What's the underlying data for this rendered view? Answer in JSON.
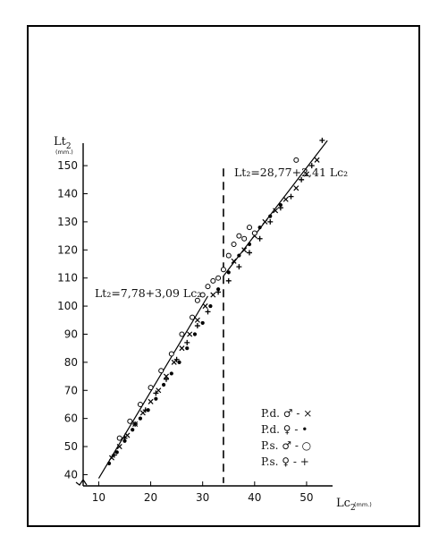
{
  "chart_data": {
    "type": "scatter",
    "title": "",
    "xlabel": "Lc",
    "xlabel_sub": "2",
    "xunit": "(mm.)",
    "ylabel": "Lt",
    "ylabel_sub": "2",
    "yunit": "(mm.)",
    "xlim": [
      7,
      55
    ],
    "ylim": [
      36,
      158
    ],
    "xticks": [
      10,
      20,
      30,
      40,
      50
    ],
    "yticks": [
      40,
      50,
      60,
      70,
      80,
      90,
      100,
      110,
      120,
      130,
      140,
      150
    ],
    "grid": false,
    "divider_x": 34,
    "regressions": [
      {
        "label": "Lt₂=7,78+3,09 Lc₂",
        "intercept": 7.78,
        "slope": 3.09,
        "x_range": [
          10,
          31
        ]
      },
      {
        "label": "Lt₂=28,77+2,41 Lc₂",
        "intercept": 28.77,
        "slope": 2.41,
        "x_range": [
          34,
          54
        ]
      }
    ],
    "legend_position": "bottom-right",
    "series": [
      {
        "name": "P.d. ♂ - ×",
        "marker": "x",
        "x": [
          12.5,
          14,
          15.5,
          17,
          18.5,
          20,
          21.5,
          23,
          24.5,
          26,
          27.5,
          29,
          30.5,
          32,
          36,
          38,
          40,
          42,
          44,
          46,
          48,
          50,
          52
        ],
        "y": [
          46,
          50,
          54,
          58,
          62,
          66,
          70,
          75,
          80,
          85,
          90,
          95,
          100,
          104,
          116,
          120,
          125,
          130,
          134,
          138,
          142,
          147,
          152
        ]
      },
      {
        "name": "P.d. ♀ - •",
        "marker": "dot",
        "x": [
          12,
          13.5,
          15,
          16.5,
          18,
          19.5,
          21,
          22.5,
          24,
          25.5,
          27,
          28.5,
          30,
          31.5,
          33,
          35,
          37,
          39,
          41,
          43,
          45
        ],
        "y": [
          44,
          48,
          52,
          56,
          60,
          63,
          67,
          72,
          76,
          80,
          85,
          90,
          94,
          100,
          106,
          112,
          118,
          122,
          128,
          132,
          136
        ]
      },
      {
        "name": "P.s. ♂ - ○",
        "marker": "circle",
        "x": [
          14,
          16,
          18,
          20,
          22,
          24,
          26,
          28,
          29,
          30,
          31,
          32,
          33,
          34,
          35,
          36,
          37,
          38,
          39,
          40,
          48
        ],
        "y": [
          53,
          59,
          65,
          71,
          77,
          83,
          90,
          96,
          102,
          104,
          107,
          109,
          110,
          113,
          118,
          122,
          125,
          124,
          128,
          126,
          152
        ]
      },
      {
        "name": "P.s. ♀ - +",
        "marker": "plus",
        "x": [
          13,
          15,
          17,
          19,
          21,
          23,
          25,
          27,
          29,
          31,
          33,
          35,
          37,
          39,
          41,
          43,
          45,
          47,
          49,
          51,
          53
        ],
        "y": [
          47,
          53,
          58,
          63,
          69,
          74,
          81,
          87,
          93,
          98,
          105,
          109,
          114,
          119,
          124,
          130,
          135,
          139,
          145,
          150,
          159
        ]
      }
    ]
  }
}
